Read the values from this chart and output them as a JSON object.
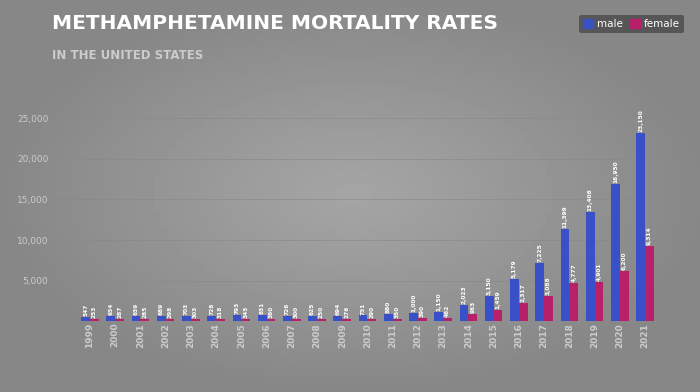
{
  "title_line1": "METHAMPHETAMINE MORTALITY RATES",
  "title_line2": "IN THE UNITED STATES",
  "legend_male": "male",
  "legend_female": "female",
  "years": [
    1999,
    2000,
    2001,
    2002,
    2003,
    2004,
    2005,
    2006,
    2007,
    2008,
    2009,
    2010,
    2011,
    2012,
    2013,
    2014,
    2015,
    2016,
    2017,
    2018,
    2019,
    2020,
    2021
  ],
  "male": [
    547,
    634,
    639,
    689,
    703,
    728,
    793,
    831,
    726,
    625,
    694,
    731,
    880,
    1000,
    1150,
    2023,
    3150,
    5179,
    7225,
    11399,
    13408,
    16950,
    23150
  ],
  "female": [
    253,
    287,
    285,
    298,
    303,
    318,
    345,
    360,
    300,
    250,
    276,
    290,
    350,
    390,
    462,
    963,
    1459,
    2317,
    3088,
    4777,
    4901,
    6200,
    9314
  ],
  "male_labels": [
    "547",
    "634",
    "639",
    "689",
    "703",
    "728",
    "793",
    "831",
    "726",
    "625",
    "694",
    "731",
    "880",
    "1,000",
    "1,150",
    "2,023",
    "3,150",
    "5,179",
    "7,225",
    "11,399",
    "13,408",
    "16,950",
    "23,150"
  ],
  "female_labels": [
    "253",
    "287",
    "285",
    "298",
    "303",
    "318",
    "345",
    "360",
    "300",
    "250",
    "276",
    "290",
    "350",
    "390",
    "462",
    "963",
    "1,459",
    "2,317",
    "3,088",
    "4,777",
    "4,901",
    "6,200",
    "9,314"
  ],
  "male_color": "#3a50c8",
  "female_color": "#b8206a",
  "bg_dark": "#5a5a5a",
  "bg_mid": "#909090",
  "plot_bg": "#717171",
  "grid_color": "#888888",
  "text_white": "#ffffff",
  "text_light": "#cccccc",
  "text_gray": "#aaaaaa",
  "ylim": [
    0,
    27000
  ],
  "yticks": [
    5000,
    10000,
    15000,
    20000,
    25000
  ],
  "bar_width": 0.35,
  "label_fontsize": 4.2,
  "title1_fontsize": 14.5,
  "title2_fontsize": 8.5,
  "legend_fontsize": 7.5
}
